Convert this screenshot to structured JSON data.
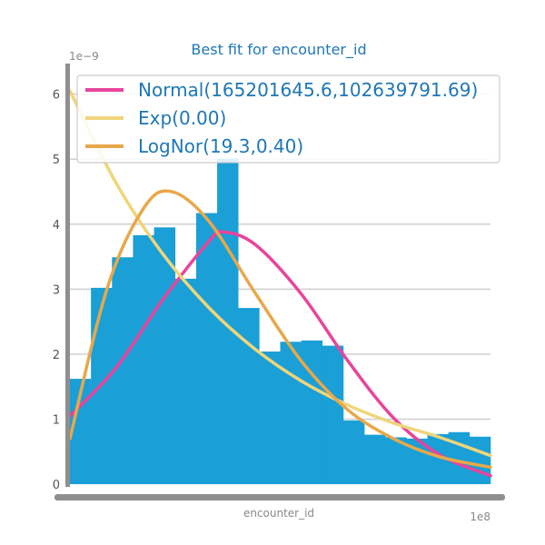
{
  "chart_data": {
    "type": "bar",
    "title": "Best fit for encounter_id",
    "xlabel": "encounter_id",
    "ylabel": "",
    "x_offset_label": "1e8",
    "y_offset_label": "1e−9",
    "xlim": [
      0,
      4.55
    ],
    "ylim": [
      0,
      6.4
    ],
    "yticks": [
      0,
      1,
      2,
      3,
      4,
      5,
      6
    ],
    "grid": true,
    "legend_position": "top",
    "bar_color": "#1a9fd6",
    "bins": {
      "edges": [
        0,
        0.2275,
        0.455,
        0.6825,
        0.91,
        1.1375,
        1.365,
        1.5925,
        1.82,
        2.0475,
        2.275,
        2.5025,
        2.73,
        2.9575,
        3.185,
        3.4125,
        3.64,
        3.8675,
        4.095,
        4.3225,
        4.55
      ],
      "values": [
        1.62,
        3.02,
        3.49,
        3.83,
        3.95,
        3.16,
        4.17,
        5.01,
        2.71,
        2.04,
        2.19,
        2.21,
        2.13,
        0.98,
        0.76,
        0.72,
        0.7,
        0.77,
        0.8,
        0.73
      ]
    },
    "series": [
      {
        "name": "Normal(165201645.6,102639791.69)",
        "color": "#e8449b",
        "dist": "normal",
        "x": [
          0,
          0.5,
          1.0,
          1.5,
          1.65,
          2.0,
          2.5,
          3.0,
          3.5,
          4.0,
          4.55
        ],
        "values": [
          1.05,
          1.79,
          2.83,
          3.73,
          3.88,
          3.69,
          2.93,
          1.91,
          1.02,
          0.45,
          0.13
        ]
      },
      {
        "name": "Exp(0.00)",
        "color": "#efd57a",
        "dist": "exponential",
        "x": [
          0,
          0.5,
          1.0,
          1.5,
          2.0,
          2.5,
          3.0,
          3.5,
          4.0,
          4.55
        ],
        "values": [
          6.05,
          4.63,
          3.55,
          2.72,
          2.08,
          1.59,
          1.22,
          0.94,
          0.72,
          0.44
        ]
      },
      {
        "name": "LogNor(19.3,0.40)",
        "color": "#e8a84a",
        "dist": "lognormal",
        "x": [
          0,
          0.4,
          0.8,
          1.1,
          1.5,
          2.0,
          2.5,
          3.0,
          3.5,
          4.0,
          4.55
        ],
        "values": [
          0.7,
          3.0,
          4.25,
          4.5,
          4.05,
          2.95,
          1.9,
          1.15,
          0.7,
          0.42,
          0.26
        ]
      }
    ]
  }
}
